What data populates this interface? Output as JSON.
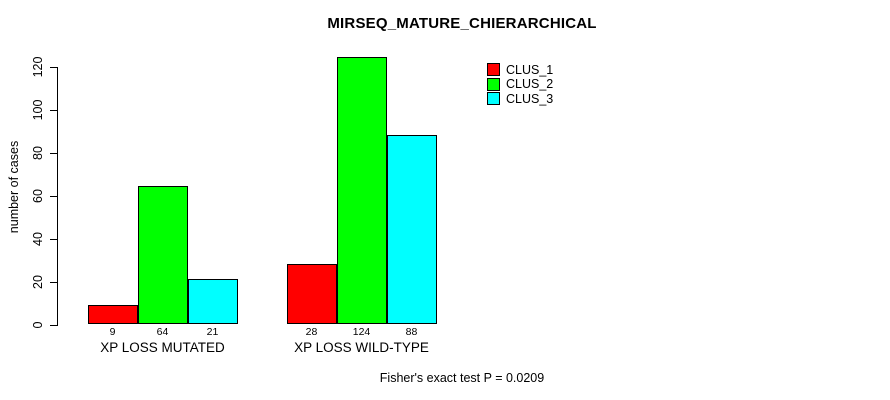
{
  "chart_data": {
    "type": "bar",
    "subtype": "grouped",
    "title": "MIRSEQ_MATURE_CHIERARCHICAL",
    "ylabel": "number of cases",
    "xlabel": "",
    "categories": [
      "XP LOSS MUTATED",
      "XP LOSS WILD-TYPE"
    ],
    "series": [
      {
        "name": "CLUS_1",
        "color": "#FF0000",
        "values": [
          9,
          28
        ]
      },
      {
        "name": "CLUS_2",
        "color": "#00FF00",
        "values": [
          64,
          124
        ]
      },
      {
        "name": "CLUS_3",
        "color": "#00FFFF",
        "values": [
          21,
          88
        ]
      }
    ],
    "ylim": [
      0,
      120
    ],
    "yticks": [
      0,
      20,
      40,
      60,
      80,
      100,
      120
    ],
    "bar_value_labels_shown": true,
    "grid": false,
    "legend_position": "top-right",
    "bar_border_color": "#000000",
    "caption": "Fisher's exact test P = 0.0209"
  }
}
